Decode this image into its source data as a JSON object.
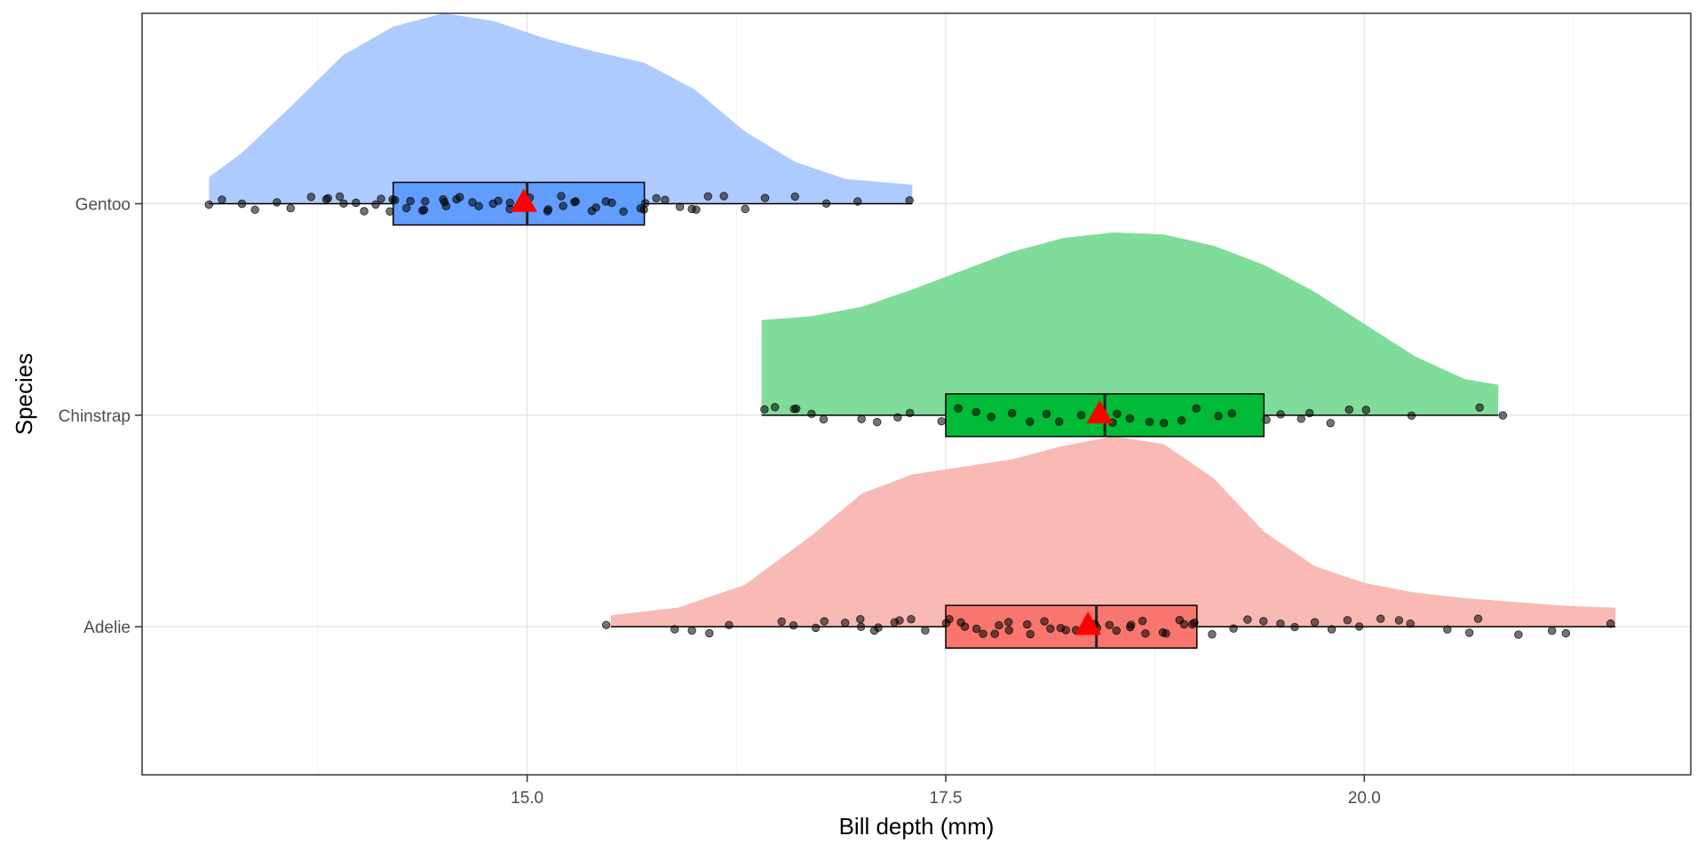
{
  "chart_data": {
    "type": "raincloud",
    "xlabel": "Bill depth (mm)",
    "ylabel": "Species",
    "x_ticks": [
      15.0,
      17.5,
      20.0
    ],
    "x_tick_labels": [
      "15.0",
      "17.5",
      "20.0"
    ],
    "xlim": [
      12.7,
      21.95
    ],
    "categories": [
      "Gentoo",
      "Chinstrap",
      "Adelie"
    ],
    "grid": true,
    "series": [
      {
        "name": "Gentoo",
        "fill": "#619CFF",
        "cloud_fill": "#aecbff",
        "box": {
          "min": 13.1,
          "q1": 14.2,
          "median": 15.0,
          "q3": 15.7,
          "max": 17.3
        },
        "mean": 14.98,
        "density": [
          [
            13.1,
            0.14
          ],
          [
            13.3,
            0.27
          ],
          [
            13.6,
            0.52
          ],
          [
            13.9,
            0.78
          ],
          [
            14.2,
            0.93
          ],
          [
            14.5,
            1.0
          ],
          [
            14.8,
            0.96
          ],
          [
            15.1,
            0.87
          ],
          [
            15.4,
            0.8
          ],
          [
            15.7,
            0.74
          ],
          [
            16.0,
            0.6
          ],
          [
            16.3,
            0.38
          ],
          [
            16.6,
            0.22
          ],
          [
            16.9,
            0.13
          ],
          [
            17.3,
            0.1
          ]
        ],
        "points": [
          13.1,
          13.2,
          13.3,
          13.4,
          13.5,
          13.6,
          13.7,
          13.8,
          13.8,
          13.9,
          13.9,
          14.0,
          14.0,
          14.1,
          14.1,
          14.2,
          14.2,
          14.2,
          14.3,
          14.3,
          14.4,
          14.4,
          14.4,
          14.5,
          14.5,
          14.5,
          14.6,
          14.6,
          14.7,
          14.7,
          14.8,
          14.8,
          14.9,
          14.9,
          15.0,
          15.0,
          15.0,
          15.1,
          15.1,
          15.2,
          15.2,
          15.3,
          15.3,
          15.4,
          15.4,
          15.5,
          15.5,
          15.6,
          15.7,
          15.7,
          15.7,
          15.8,
          15.8,
          15.9,
          16.0,
          16.0,
          16.1,
          16.2,
          16.3,
          16.4,
          16.6,
          16.8,
          17.0,
          17.3
        ]
      },
      {
        "name": "Chinstrap",
        "fill": "#00BA38",
        "cloud_fill": "#80dc9b",
        "box": {
          "min": 16.4,
          "q1": 17.5,
          "median": 18.45,
          "q3": 19.4,
          "max": 20.8
        },
        "mean": 18.42,
        "density": [
          [
            16.4,
            0.5
          ],
          [
            16.7,
            0.52
          ],
          [
            17.0,
            0.57
          ],
          [
            17.3,
            0.66
          ],
          [
            17.6,
            0.76
          ],
          [
            17.9,
            0.86
          ],
          [
            18.2,
            0.93
          ],
          [
            18.5,
            0.96
          ],
          [
            18.8,
            0.95
          ],
          [
            19.1,
            0.89
          ],
          [
            19.4,
            0.79
          ],
          [
            19.7,
            0.65
          ],
          [
            20.0,
            0.48
          ],
          [
            20.3,
            0.31
          ],
          [
            20.6,
            0.19
          ],
          [
            20.8,
            0.16
          ]
        ],
        "points": [
          16.4,
          16.5,
          16.6,
          16.6,
          16.7,
          16.8,
          17.0,
          17.1,
          17.2,
          17.3,
          17.5,
          17.6,
          17.7,
          17.8,
          17.9,
          18.0,
          18.1,
          18.2,
          18.3,
          18.4,
          18.5,
          18.5,
          18.6,
          18.7,
          18.8,
          18.9,
          19.0,
          19.1,
          19.2,
          19.4,
          19.5,
          19.6,
          19.7,
          19.8,
          19.9,
          20.0,
          20.3,
          20.7,
          20.8
        ]
      },
      {
        "name": "Adelie",
        "fill": "#F8766D",
        "cloud_fill": "#f9b9b5",
        "box": {
          "min": 15.5,
          "q1": 17.5,
          "median": 18.4,
          "q3": 19.0,
          "max": 21.5
        },
        "mean": 18.35,
        "density": [
          [
            15.5,
            0.06
          ],
          [
            15.9,
            0.1
          ],
          [
            16.3,
            0.22
          ],
          [
            16.7,
            0.48
          ],
          [
            17.0,
            0.7
          ],
          [
            17.3,
            0.8
          ],
          [
            17.6,
            0.84
          ],
          [
            17.9,
            0.88
          ],
          [
            18.2,
            0.95
          ],
          [
            18.5,
            1.0
          ],
          [
            18.8,
            0.96
          ],
          [
            19.1,
            0.78
          ],
          [
            19.4,
            0.5
          ],
          [
            19.7,
            0.32
          ],
          [
            20.0,
            0.23
          ],
          [
            20.3,
            0.18
          ],
          [
            20.6,
            0.15
          ],
          [
            20.9,
            0.13
          ],
          [
            21.2,
            0.11
          ],
          [
            21.5,
            0.1
          ]
        ],
        "points": [
          15.5,
          15.9,
          16.0,
          16.1,
          16.2,
          16.5,
          16.6,
          16.7,
          16.8,
          16.9,
          17.0,
          17.0,
          17.1,
          17.1,
          17.2,
          17.2,
          17.3,
          17.4,
          17.5,
          17.5,
          17.6,
          17.6,
          17.7,
          17.7,
          17.8,
          17.8,
          17.9,
          17.9,
          18.0,
          18.0,
          18.1,
          18.1,
          18.2,
          18.2,
          18.3,
          18.3,
          18.4,
          18.4,
          18.5,
          18.5,
          18.6,
          18.6,
          18.7,
          18.7,
          18.8,
          18.8,
          18.9,
          18.9,
          19.0,
          19.0,
          19.1,
          19.2,
          19.3,
          19.4,
          19.5,
          19.6,
          19.7,
          19.8,
          19.9,
          20.0,
          20.1,
          20.2,
          20.3,
          20.5,
          20.6,
          20.7,
          20.9,
          21.1,
          21.2,
          21.5
        ]
      }
    ],
    "mean_marker": {
      "shape": "triangle",
      "color": "#FF0000"
    },
    "point_color": "#000000"
  }
}
